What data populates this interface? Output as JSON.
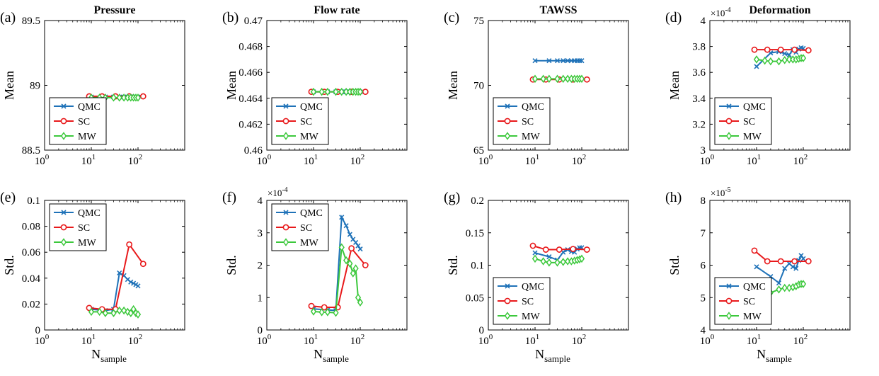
{
  "legend_labels": [
    "QMC",
    "SC",
    "MW"
  ],
  "series_colors": {
    "QMC": "#1f72b8",
    "SC": "#e8191b",
    "MW": "#3cc83c"
  },
  "x_axis": {
    "scale": "log",
    "range": [
      1,
      1000
    ],
    "ticks": [
      1,
      10,
      100
    ],
    "tick_labels": [
      "10",
      "10",
      "10"
    ],
    "tick_exponents": [
      "0",
      "1",
      "2"
    ],
    "label_main": "N",
    "label_sub": "sample"
  },
  "chart_data": [
    {
      "type": "line",
      "panel_label": "(a)",
      "title": "Pressure",
      "ylabel": "Mean",
      "ylim": [
        88.5,
        89.5
      ],
      "yticks": [
        88.5,
        89,
        89.5
      ],
      "ytick_labels": [
        "88.5",
        "89",
        "89.5"
      ],
      "y_multiplier": "",
      "legend": "bottom-left",
      "series": [
        {
          "name": "QMC",
          "marker": "x",
          "x": [
            10,
            20,
            30,
            40,
            50,
            60,
            70,
            80,
            90,
            100
          ],
          "y": [
            88.91,
            88.91,
            88.91,
            88.91,
            88.91,
            88.91,
            88.91,
            88.91,
            88.91,
            88.91
          ]
        },
        {
          "name": "SC",
          "marker": "o",
          "x": [
            9,
            17,
            33,
            65,
            129
          ],
          "y": [
            88.915,
            88.915,
            88.915,
            88.915,
            88.915
          ]
        },
        {
          "name": "MW",
          "marker": "d",
          "x": [
            10,
            15,
            20,
            30,
            40,
            50,
            60,
            70,
            80,
            90,
            100
          ],
          "y": [
            88.905,
            88.905,
            88.905,
            88.905,
            88.905,
            88.905,
            88.905,
            88.905,
            88.905,
            88.905,
            88.905
          ]
        }
      ]
    },
    {
      "type": "line",
      "panel_label": "(b)",
      "title": "Flow rate",
      "ylabel": "Mean",
      "ylim": [
        0.46,
        0.47
      ],
      "yticks": [
        0.46,
        0.462,
        0.464,
        0.466,
        0.468,
        0.47
      ],
      "ytick_labels": [
        "0.46",
        "0.462",
        "0.464",
        "0.466",
        "0.468",
        "0.47"
      ],
      "y_multiplier": "",
      "legend": "bottom-left",
      "series": [
        {
          "name": "QMC",
          "marker": "x",
          "x": [
            10,
            20,
            30,
            40,
            50,
            60,
            70,
            80,
            90,
            100
          ],
          "y": [
            0.4645,
            0.4645,
            0.4645,
            0.4645,
            0.4645,
            0.4645,
            0.4645,
            0.4645,
            0.4645,
            0.4645
          ]
        },
        {
          "name": "SC",
          "marker": "o",
          "x": [
            9,
            17,
            33,
            65,
            129
          ],
          "y": [
            0.4645,
            0.4645,
            0.4645,
            0.4645,
            0.4645
          ]
        },
        {
          "name": "MW",
          "marker": "d",
          "x": [
            10,
            15,
            20,
            30,
            40,
            50,
            60,
            70,
            80,
            90,
            100
          ],
          "y": [
            0.4645,
            0.4645,
            0.4645,
            0.4645,
            0.4645,
            0.4645,
            0.4645,
            0.4645,
            0.4645,
            0.4645,
            0.4645
          ]
        }
      ]
    },
    {
      "type": "line",
      "panel_label": "(c)",
      "title": "TAWSS",
      "ylabel": "Mean",
      "ylim": [
        65,
        75
      ],
      "yticks": [
        65,
        70,
        75
      ],
      "ytick_labels": [
        "65",
        "70",
        "75"
      ],
      "y_multiplier": "",
      "legend": "bottom-left",
      "series": [
        {
          "name": "QMC",
          "marker": "x",
          "x": [
            10,
            20,
            30,
            40,
            50,
            60,
            70,
            80,
            90,
            100
          ],
          "y": [
            71.9,
            71.9,
            71.9,
            71.9,
            71.9,
            71.9,
            71.9,
            71.9,
            71.9,
            71.9
          ]
        },
        {
          "name": "SC",
          "marker": "o",
          "x": [
            9,
            17,
            33,
            65,
            129
          ],
          "y": [
            70.45,
            70.45,
            70.45,
            70.45,
            70.45
          ]
        },
        {
          "name": "MW",
          "marker": "d",
          "x": [
            10,
            15,
            20,
            30,
            40,
            50,
            60,
            70,
            80,
            90,
            100
          ],
          "y": [
            70.5,
            70.5,
            70.5,
            70.5,
            70.5,
            70.5,
            70.5,
            70.5,
            70.5,
            70.5,
            70.5
          ]
        }
      ]
    },
    {
      "type": "line",
      "panel_label": "(d)",
      "title": "Deformation",
      "ylabel": "Mean",
      "ylim": [
        3,
        4
      ],
      "yticks": [
        3,
        3.2,
        3.4,
        3.6,
        3.8,
        4
      ],
      "ytick_labels": [
        "3",
        "3.2",
        "3.4",
        "3.6",
        "3.8",
        "4"
      ],
      "y_multiplier": "×10",
      "y_multiplier_exp": "-4",
      "legend": "bottom-left",
      "series": [
        {
          "name": "QMC",
          "marker": "x",
          "x": [
            10,
            20,
            30,
            40,
            50,
            60,
            70,
            80,
            90,
            100
          ],
          "y": [
            3.645,
            3.75,
            3.76,
            3.745,
            3.735,
            3.775,
            3.755,
            3.78,
            3.79,
            3.785
          ]
        },
        {
          "name": "SC",
          "marker": "o",
          "x": [
            9,
            17,
            33,
            65,
            129
          ],
          "y": [
            3.775,
            3.775,
            3.775,
            3.775,
            3.77
          ]
        },
        {
          "name": "MW",
          "marker": "d",
          "x": [
            10,
            15,
            20,
            30,
            40,
            50,
            60,
            70,
            80,
            90,
            100
          ],
          "y": [
            3.7,
            3.69,
            3.685,
            3.685,
            3.695,
            3.7,
            3.7,
            3.7,
            3.705,
            3.71,
            3.71
          ]
        }
      ]
    },
    {
      "type": "line",
      "panel_label": "(e)",
      "title": "",
      "ylabel": "Std.",
      "ylim": [
        0,
        0.1
      ],
      "yticks": [
        0,
        0.02,
        0.04,
        0.06,
        0.08,
        0.1
      ],
      "ytick_labels": [
        "0",
        "0.02",
        "0.04",
        "0.06",
        "0.08",
        "0.1"
      ],
      "y_multiplier": "",
      "legend": "top-left",
      "series": [
        {
          "name": "QMC",
          "marker": "x",
          "x": [
            10,
            20,
            30,
            40,
            50,
            60,
            70,
            80,
            90,
            100
          ],
          "y": [
            0.016,
            0.015,
            0.016,
            0.044,
            0.042,
            0.039,
            0.037,
            0.036,
            0.035,
            0.034
          ]
        },
        {
          "name": "SC",
          "marker": "o",
          "x": [
            9,
            17,
            33,
            65,
            129
          ],
          "y": [
            0.017,
            0.016,
            0.016,
            0.066,
            0.051
          ]
        },
        {
          "name": "MW",
          "marker": "d",
          "x": [
            10,
            15,
            20,
            30,
            40,
            50,
            60,
            70,
            80,
            90,
            100
          ],
          "y": [
            0.014,
            0.014,
            0.013,
            0.013,
            0.015,
            0.015,
            0.014,
            0.013,
            0.016,
            0.013,
            0.012
          ]
        }
      ]
    },
    {
      "type": "line",
      "panel_label": "(f)",
      "title": "",
      "ylabel": "Std.",
      "ylim": [
        0,
        4
      ],
      "yticks": [
        0,
        1,
        2,
        3,
        4
      ],
      "ytick_labels": [
        "0",
        "1",
        "2",
        "3",
        "4"
      ],
      "y_multiplier": "×10",
      "y_multiplier_exp": "-4",
      "legend": "top-left",
      "series": [
        {
          "name": "QMC",
          "marker": "x",
          "x": [
            10,
            20,
            30,
            40,
            50,
            60,
            70,
            80,
            90,
            100
          ],
          "y": [
            0.65,
            0.62,
            0.6,
            3.48,
            3.22,
            2.95,
            2.8,
            2.7,
            2.6,
            2.5
          ]
        },
        {
          "name": "SC",
          "marker": "o",
          "x": [
            9,
            17,
            33,
            65,
            129
          ],
          "y": [
            0.74,
            0.7,
            0.7,
            2.52,
            2.0
          ]
        },
        {
          "name": "MW",
          "marker": "d",
          "x": [
            10,
            15,
            20,
            30,
            40,
            50,
            60,
            70,
            80,
            90,
            100
          ],
          "y": [
            0.57,
            0.55,
            0.55,
            0.53,
            2.55,
            2.15,
            2.05,
            1.75,
            1.9,
            1.0,
            0.85
          ]
        }
      ]
    },
    {
      "type": "line",
      "panel_label": "(g)",
      "title": "",
      "ylabel": "Std.",
      "ylim": [
        0,
        0.2
      ],
      "yticks": [
        0,
        0.05,
        0.1,
        0.15,
        0.2
      ],
      "ytick_labels": [
        "0",
        "0.05",
        "0.1",
        "0.15",
        "0.2"
      ],
      "y_multiplier": "",
      "legend": "bottom-left",
      "series": [
        {
          "name": "QMC",
          "marker": "x",
          "x": [
            10,
            20,
            30,
            40,
            50,
            60,
            70,
            80,
            90,
            100
          ],
          "y": [
            0.119,
            0.113,
            0.108,
            0.12,
            0.124,
            0.121,
            0.12,
            0.125,
            0.127,
            0.127
          ]
        },
        {
          "name": "SC",
          "marker": "o",
          "x": [
            9,
            17,
            33,
            65,
            129
          ],
          "y": [
            0.13,
            0.124,
            0.124,
            0.125,
            0.124
          ]
        },
        {
          "name": "MW",
          "marker": "d",
          "x": [
            10,
            15,
            20,
            30,
            40,
            50,
            60,
            70,
            80,
            90,
            100
          ],
          "y": [
            0.11,
            0.106,
            0.104,
            0.104,
            0.105,
            0.106,
            0.106,
            0.107,
            0.108,
            0.109,
            0.11
          ]
        }
      ]
    },
    {
      "type": "line",
      "panel_label": "(h)",
      "title": "",
      "ylabel": "Std.",
      "ylim": [
        4,
        8
      ],
      "yticks": [
        4,
        5,
        6,
        7,
        8
      ],
      "ytick_labels": [
        "4",
        "5",
        "6",
        "7",
        "8"
      ],
      "y_multiplier": "×10",
      "y_multiplier_exp": "-5",
      "legend": "bottom-left",
      "series": [
        {
          "name": "QMC",
          "marker": "x",
          "x": [
            10,
            20,
            30,
            40,
            50,
            60,
            70,
            80,
            90,
            100
          ],
          "y": [
            5.95,
            5.65,
            5.45,
            5.9,
            6.05,
            5.95,
            5.9,
            6.15,
            6.3,
            6.2
          ]
        },
        {
          "name": "SC",
          "marker": "o",
          "x": [
            9,
            17,
            33,
            65,
            129
          ],
          "y": [
            6.45,
            6.12,
            6.12,
            6.12,
            6.12
          ]
        },
        {
          "name": "MW",
          "marker": "d",
          "x": [
            10,
            15,
            20,
            30,
            40,
            50,
            60,
            70,
            80,
            90,
            100
          ],
          "y": [
            5.45,
            5.25,
            5.15,
            5.25,
            5.3,
            5.3,
            5.32,
            5.35,
            5.4,
            5.42,
            5.42
          ]
        }
      ]
    }
  ]
}
